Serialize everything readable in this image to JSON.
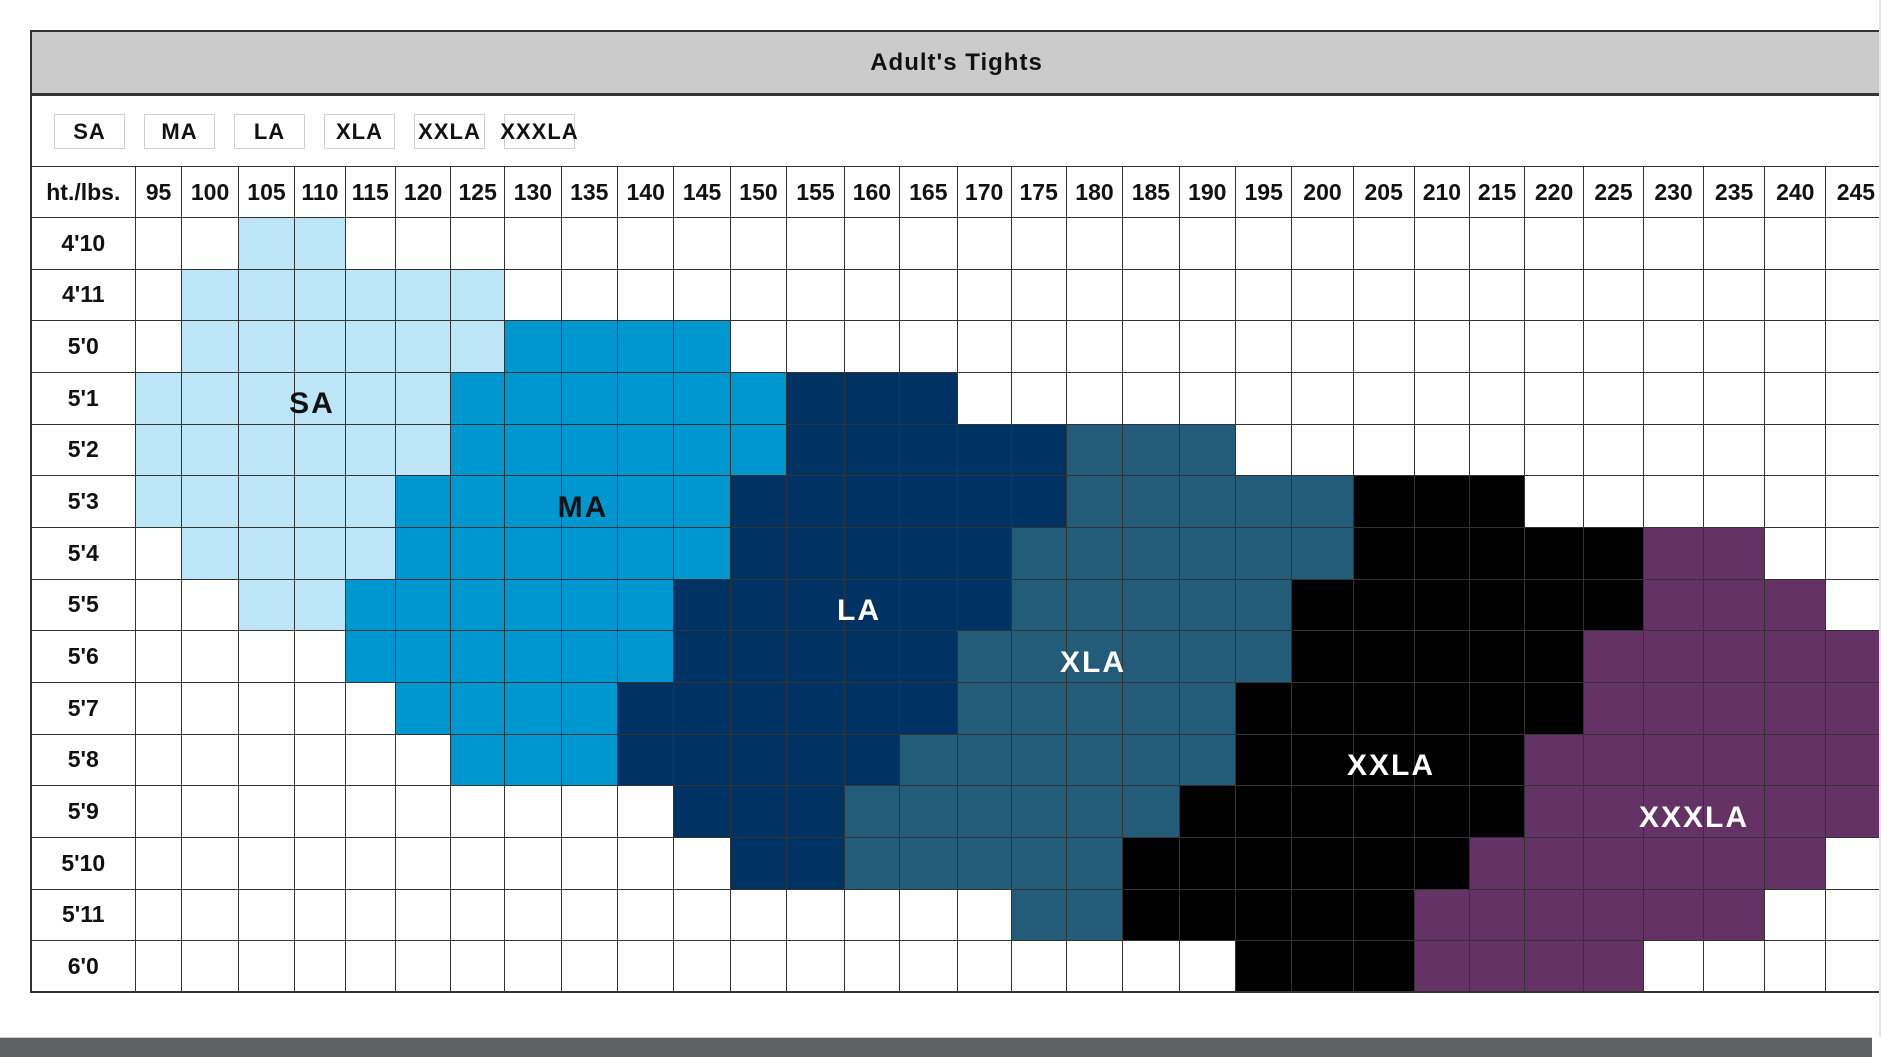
{
  "chart_data": {
    "type": "heatmap",
    "title": "Adult's Tights",
    "corner_label": "ht./lbs.",
    "x_categories": [
      "95",
      "100",
      "105",
      "110",
      "115",
      "120",
      "125",
      "130",
      "135",
      "140",
      "145",
      "150",
      "155",
      "160",
      "165",
      "170",
      "175",
      "180",
      "185",
      "190",
      "195",
      "200",
      "205",
      "210",
      "215",
      "220",
      "225",
      "230",
      "235",
      "240",
      "245"
    ],
    "y_categories": [
      "4'10",
      "4'11",
      "5'0",
      "5'1",
      "5'2",
      "5'3",
      "5'4",
      "5'5",
      "5'6",
      "5'7",
      "5'8",
      "5'9",
      "5'10",
      "5'11",
      "6'0"
    ],
    "legend": [
      "SA",
      "MA",
      "LA",
      "XLA",
      "XXLA",
      "XXXLA"
    ],
    "size_colors": {
      "SA": "#bde5f8",
      "MA": "#0096d0",
      "LA": "#003264",
      "XLA": "#235c78",
      "XXLA": "#000000",
      "XXXLA": "#643264"
    },
    "label_text_colors": {
      "SA": "#111111",
      "MA": "#111111",
      "LA": "#ffffff",
      "XLA": "#ffffff",
      "XXLA": "#ffffff",
      "XXXLA": "#ffffff"
    },
    "cell_key": {
      ".": "",
      "S": "SA",
      "M": "MA",
      "L": "LA",
      "X": "XLA",
      "Y": "XXLA",
      "Z": "XXXLA"
    },
    "rows": [
      "..SS...........................",
      ".SSSSSS........................",
      ".SSSSSSMMMM....................",
      "SSSSSSMMMMMMLLL................",
      "SSSSSSMMMMMMLLLLLXXX...........",
      "SSSSSMMMMMMLLLLLLXXXXXYYY......",
      ".SSSSMMMMMMLLLLLXXXXXXYYYYYZZ..",
      "..SSMMMMMMLLLLLLXXXXXYYYYYYZZZ.",
      "....MMMMMMLLLLLXXXXXXYYYYYZZZZZ",
      ".....MMMMLLLLLLXXXXXYYYYYYZZZZZ",
      "......MMMLLLLLXXXXXXYYYYYZZZZZZ",
      "..........LLLXXXXXXYYYYYYZZZZZZ",
      "...........LLXXXXXYYYYYYZZZZZZ.",
      "................XXYYYYYZZZZZZ..",
      "....................YYYZZZZ...."
    ],
    "region_labels": [
      "SA",
      "MA",
      "LA",
      "XLA",
      "XXLA",
      "XXXLA"
    ],
    "grid": true,
    "legend_placement": "top-left"
  }
}
